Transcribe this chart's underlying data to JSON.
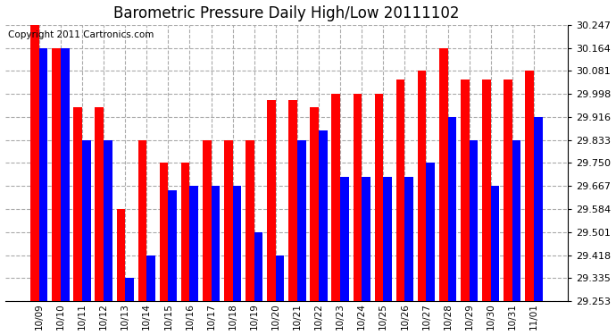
{
  "title": "Barometric Pressure Daily High/Low 20111102",
  "copyright": "Copyright 2011 Cartronics.com",
  "dates": [
    "10/09",
    "10/10",
    "10/11",
    "10/12",
    "10/13",
    "10/14",
    "10/15",
    "10/16",
    "10/17",
    "10/18",
    "10/19",
    "10/20",
    "10/21",
    "10/22",
    "10/23",
    "10/24",
    "10/25",
    "10/26",
    "10/27",
    "10/28",
    "10/29",
    "10/30",
    "10/31",
    "11/01"
  ],
  "highs": [
    30.247,
    30.164,
    29.95,
    29.95,
    29.584,
    29.833,
    29.75,
    29.75,
    29.833,
    29.833,
    29.833,
    29.975,
    29.975,
    29.95,
    29.998,
    29.998,
    29.998,
    30.05,
    30.081,
    30.164,
    30.05,
    30.05,
    30.05,
    30.081
  ],
  "lows": [
    30.164,
    30.164,
    29.833,
    29.833,
    29.335,
    29.418,
    29.65,
    29.667,
    29.667,
    29.667,
    29.501,
    29.418,
    29.833,
    29.867,
    29.7,
    29.7,
    29.7,
    29.7,
    29.75,
    29.916,
    29.833,
    29.667,
    29.833,
    29.916
  ],
  "ymin": 29.253,
  "ymax": 30.247,
  "yticks": [
    29.253,
    29.335,
    29.418,
    29.501,
    29.584,
    29.667,
    29.75,
    29.833,
    29.916,
    29.998,
    30.081,
    30.164,
    30.247
  ],
  "bg_color": "#ffffff",
  "plot_bg": "#ffffff",
  "bar_color_high": "#ff0000",
  "bar_color_low": "#0000ff",
  "grid_color": "#aaaaaa",
  "title_color": "#000000",
  "title_fontsize": 12,
  "copyright_fontsize": 7.5
}
